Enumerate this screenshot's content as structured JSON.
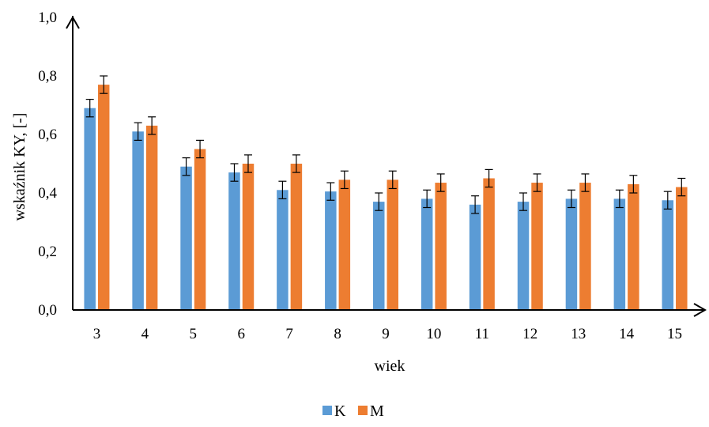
{
  "chart_data": {
    "type": "bar",
    "title": "",
    "xlabel": "wiek",
    "ylabel": "wskaźnik KY, [-]",
    "ylim": [
      0,
      1
    ],
    "yticks": [
      "0,0",
      "0,2",
      "0,4",
      "0,6",
      "0,8",
      "1,0"
    ],
    "categories": [
      "3",
      "4",
      "5",
      "6",
      "7",
      "8",
      "9",
      "10",
      "11",
      "12",
      "13",
      "14",
      "15"
    ],
    "series": [
      {
        "name": "K",
        "color": "#5B9BD5",
        "values": [
          0.69,
          0.61,
          0.49,
          0.47,
          0.41,
          0.405,
          0.37,
          0.38,
          0.36,
          0.37,
          0.38,
          0.38,
          0.375
        ],
        "errors": [
          0.03,
          0.03,
          0.03,
          0.03,
          0.03,
          0.03,
          0.03,
          0.03,
          0.03,
          0.03,
          0.03,
          0.03,
          0.03
        ]
      },
      {
        "name": "M",
        "color": "#ED7D31",
        "values": [
          0.77,
          0.63,
          0.55,
          0.5,
          0.5,
          0.445,
          0.445,
          0.435,
          0.45,
          0.435,
          0.435,
          0.43,
          0.42
        ],
        "errors": [
          0.03,
          0.03,
          0.03,
          0.03,
          0.03,
          0.03,
          0.03,
          0.03,
          0.03,
          0.03,
          0.03,
          0.03,
          0.03
        ]
      }
    ],
    "grid": false,
    "legend": "bottom-center",
    "error_bars": true
  }
}
